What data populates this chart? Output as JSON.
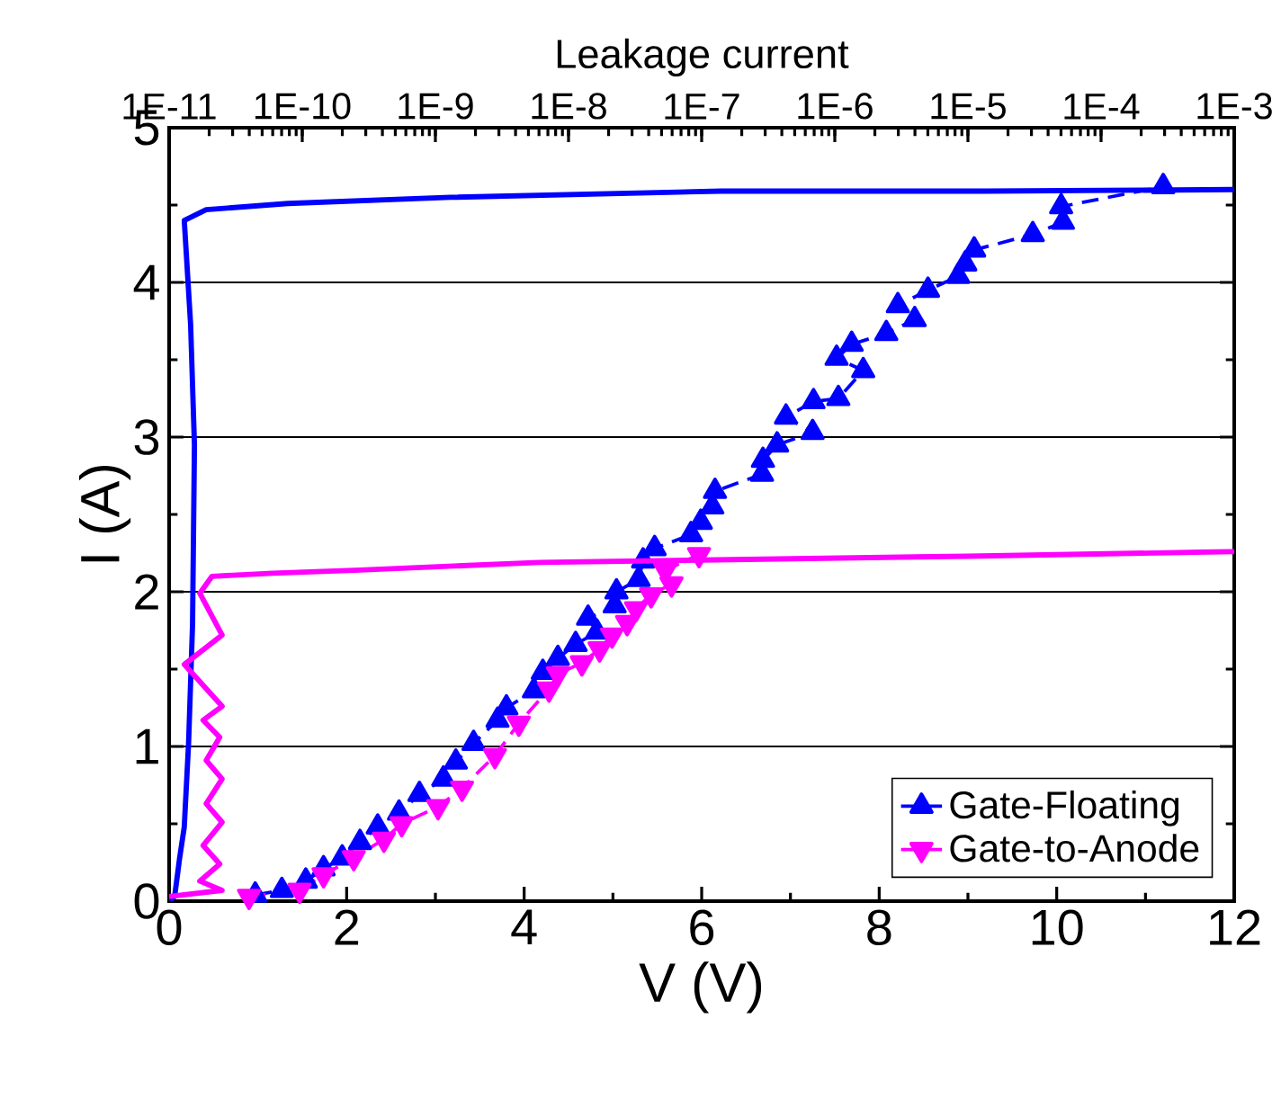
{
  "chart_data": {
    "type": "line",
    "xlabel": "V (V)",
    "ylabel": "I (A)",
    "x2label": "Leakage current",
    "xlim": [
      0,
      12
    ],
    "xticks": [
      0,
      2,
      4,
      6,
      8,
      10,
      12
    ],
    "ylim": [
      0,
      5
    ],
    "yticks": [
      0,
      1,
      2,
      3,
      4,
      5
    ],
    "x2lim": [
      1e-11,
      0.001
    ],
    "x2ticks": [
      {
        "value": 1e-11,
        "label": "1E-11"
      },
      {
        "value": 1e-10,
        "label": "1E-10"
      },
      {
        "value": 1e-09,
        "label": "1E-9"
      },
      {
        "value": 1e-08,
        "label": "1E-8"
      },
      {
        "value": 1e-07,
        "label": "1E-7"
      },
      {
        "value": 1e-06,
        "label": "1E-6"
      },
      {
        "value": 1e-05,
        "label": "1E-5"
      },
      {
        "value": 0.0001,
        "label": "1E-4"
      },
      {
        "value": 0.001,
        "label": "1E-3"
      }
    ],
    "log": "x2",
    "grid": "y",
    "legend": "bottom right",
    "series": [
      {
        "name": "Gate-Floating",
        "color": "#0000ff",
        "marker": "triangle",
        "line_style": "dashed",
        "x": [
          0.97,
          1.27,
          1.54,
          1.74,
          1.95,
          2.15,
          2.35,
          2.59,
          2.82,
          3.09,
          3.23,
          3.43,
          3.7,
          3.8,
          4.11,
          4.21,
          4.38,
          4.58,
          4.82,
          4.72,
          5.02,
          5.04,
          5.29,
          5.34,
          5.47,
          5.88,
          5.99,
          6.12,
          6.15,
          6.68,
          6.69,
          6.85,
          7.25,
          6.95,
          7.26,
          7.54,
          7.82,
          7.52,
          7.69,
          8.08,
          8.4,
          8.21,
          8.55,
          8.89,
          8.97,
          9.07,
          9.73,
          10.07,
          10.05,
          11.2
        ],
        "values": [
          0.04,
          0.07,
          0.13,
          0.21,
          0.28,
          0.38,
          0.48,
          0.57,
          0.69,
          0.79,
          0.9,
          1.02,
          1.17,
          1.25,
          1.36,
          1.48,
          1.57,
          1.66,
          1.74,
          1.83,
          1.91,
          2.0,
          2.08,
          2.2,
          2.28,
          2.37,
          2.45,
          2.55,
          2.65,
          2.76,
          2.85,
          2.95,
          3.03,
          3.13,
          3.23,
          3.25,
          3.43,
          3.51,
          3.6,
          3.67,
          3.76,
          3.85,
          3.95,
          4.04,
          4.12,
          4.21,
          4.31,
          4.39,
          4.49,
          4.62
        ]
      },
      {
        "name": "Gate-to-Anode",
        "color": "#ff00ff",
        "marker": "triangle-down",
        "line_style": "dashed",
        "x": [
          0.9,
          1.47,
          1.74,
          2.08,
          2.42,
          2.62,
          3.03,
          3.3,
          3.67,
          3.94,
          4.28,
          4.38,
          4.65,
          4.85,
          4.99,
          5.16,
          5.26,
          5.43,
          5.66,
          5.59,
          5.97
        ],
        "values": [
          0.03,
          0.07,
          0.17,
          0.28,
          0.4,
          0.5,
          0.61,
          0.73,
          0.94,
          1.15,
          1.37,
          1.47,
          1.54,
          1.63,
          1.72,
          1.8,
          1.89,
          1.98,
          2.05,
          2.14,
          2.24
        ]
      },
      {
        "color": "#0000ff",
        "axis": "x2",
        "marker": "none",
        "line_style": "solid",
        "x": [
          1e-11,
          1.1e-11,
          1.2e-11,
          1.3e-11,
          1.4e-11,
          1.5e-11,
          1.55e-11,
          1.45e-11,
          1.3e-11,
          1.9e-11,
          7.8e-11,
          1.3e-09,
          1.4e-07,
          1.4e-05,
          0.001
        ],
        "values": [
          0.0,
          0.03,
          0.28,
          0.48,
          1.02,
          1.79,
          2.95,
          3.73,
          4.4,
          4.47,
          4.51,
          4.55,
          4.59,
          4.59,
          4.6
        ]
      },
      {
        "color": "#ff00ff",
        "axis": "x2",
        "marker": "none",
        "line_style": "solid",
        "x": [
          1e-11,
          2.5e-11,
          1.7e-11,
          2.4e-11,
          1.8e-11,
          2.5e-11,
          1.9e-11,
          2.5e-11,
          1.9e-11,
          2.4e-11,
          1.8e-11,
          2.5e-11,
          1.3e-11,
          2.5e-11,
          1.7e-11,
          2.1e-11,
          6e-11,
          2.7e-10,
          6e-09,
          1e-05,
          0.001
        ],
        "values": [
          0.03,
          0.07,
          0.13,
          0.24,
          0.36,
          0.51,
          0.63,
          0.79,
          0.91,
          1.06,
          1.17,
          1.26,
          1.53,
          1.72,
          1.99,
          2.1,
          2.12,
          2.14,
          2.19,
          2.23,
          2.26
        ]
      }
    ]
  }
}
